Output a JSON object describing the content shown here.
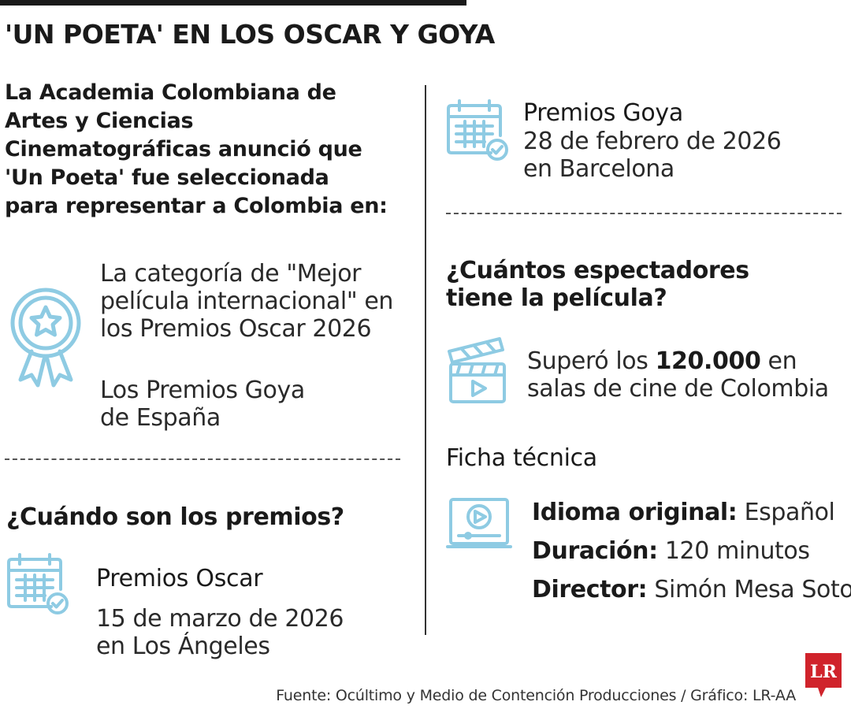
{
  "title": "'UN POETA' EN LOS OSCAR Y GOYA",
  "intro": {
    "lines": [
      "La Academia Colombiana de",
      "Artes y Ciencias",
      "Cinematográficas anunció que",
      "'Un Poeta' fue seleccionada",
      "para representar a Colombia en:"
    ]
  },
  "categories": {
    "oscar": [
      "La categoría de \"Mejor",
      "película internacional\" en",
      "los Premios Oscar 2026"
    ],
    "goya": [
      "Los Premios Goya",
      "de España"
    ]
  },
  "when": {
    "heading": "¿Cuándo son los premios?",
    "oscar": {
      "name": "Premios Oscar",
      "date": "15 de marzo de 2026",
      "place": "en Los Ángeles"
    },
    "goya": {
      "name": "Premios Goya",
      "date": "28 de febrero de 2026",
      "place": "en Barcelona"
    }
  },
  "spectators": {
    "heading_lines": [
      "¿Cuántos espectadores",
      "tiene la película?"
    ],
    "prefix": "Superó los ",
    "number": "120.000",
    "suffix": " en",
    "line2": "salas de cine de Colombia"
  },
  "ficha": {
    "heading": "Ficha técnica",
    "rows": [
      {
        "label": "Idioma original:",
        "value": "Español"
      },
      {
        "label": "Duración:",
        "value": "120 minutos"
      },
      {
        "label": "Director:",
        "value": "Simón Mesa Soto"
      }
    ]
  },
  "source": "Fuente: Ocúltimo y Medio de Contención Producciones / Gráfico: LR-AA",
  "logo_text": "LR",
  "colors": {
    "icon": "#8ecbe3",
    "logo": "#d0232b",
    "text": "#1a1a1a"
  },
  "icons": [
    "medal-icon",
    "calendar-check-icon",
    "clapperboard-icon",
    "video-player-icon"
  ]
}
